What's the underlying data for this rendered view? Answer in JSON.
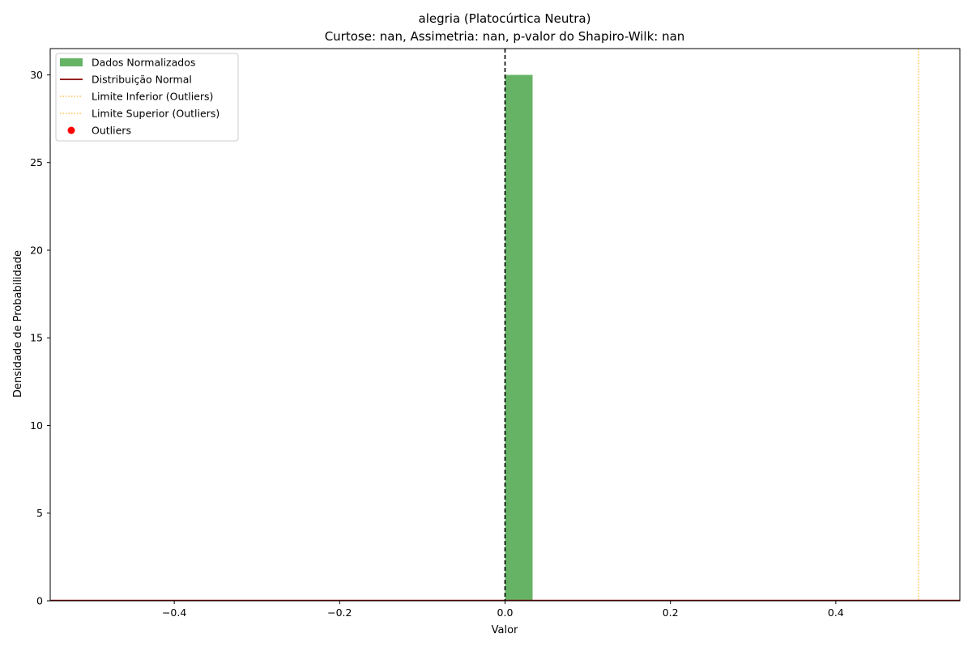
{
  "chart_data": {
    "type": "bar",
    "title": "alegria (Platocúrtica Neutra)",
    "subtitle": "Curtose: nan, Assimetria: nan, p-valor do Shapiro-Wilk: nan",
    "xlabel": "Valor",
    "ylabel": "Densidade de Probabilidade",
    "xlim": [
      -0.55,
      0.55
    ],
    "ylim": [
      0,
      31.5
    ],
    "xticks": [
      -0.4,
      -0.2,
      0.0,
      0.2,
      0.4
    ],
    "xtick_labels": [
      "−0.4",
      "−0.2",
      "0.0",
      "0.2",
      "0.4"
    ],
    "yticks": [
      0,
      5,
      10,
      15,
      20,
      25,
      30
    ],
    "ytick_labels": [
      "0",
      "5",
      "10",
      "15",
      "20",
      "25",
      "30"
    ],
    "grid": false,
    "legend_position": "top-left",
    "bars": [
      {
        "x0": 0.0,
        "x1": 0.0333,
        "height": 30
      }
    ],
    "vertical_lines": [
      {
        "x": 0.0,
        "style": "dashed",
        "color": "#000000"
      },
      {
        "x": 0.5,
        "style": "dotted",
        "color": "#ffa500"
      }
    ],
    "legend": [
      {
        "label": "Dados Normalizados",
        "kind": "patch",
        "color": "#66b366"
      },
      {
        "label": "Distribuição Normal",
        "kind": "line",
        "color": "#8b0000"
      },
      {
        "label": "Limite Inferior (Outliers)",
        "kind": "dotted",
        "color": "#ffa500"
      },
      {
        "label": "Limite Superior (Outliers)",
        "kind": "dotted",
        "color": "#ffa500"
      },
      {
        "label": "Outliers",
        "kind": "marker",
        "color": "#ff0000"
      }
    ]
  }
}
